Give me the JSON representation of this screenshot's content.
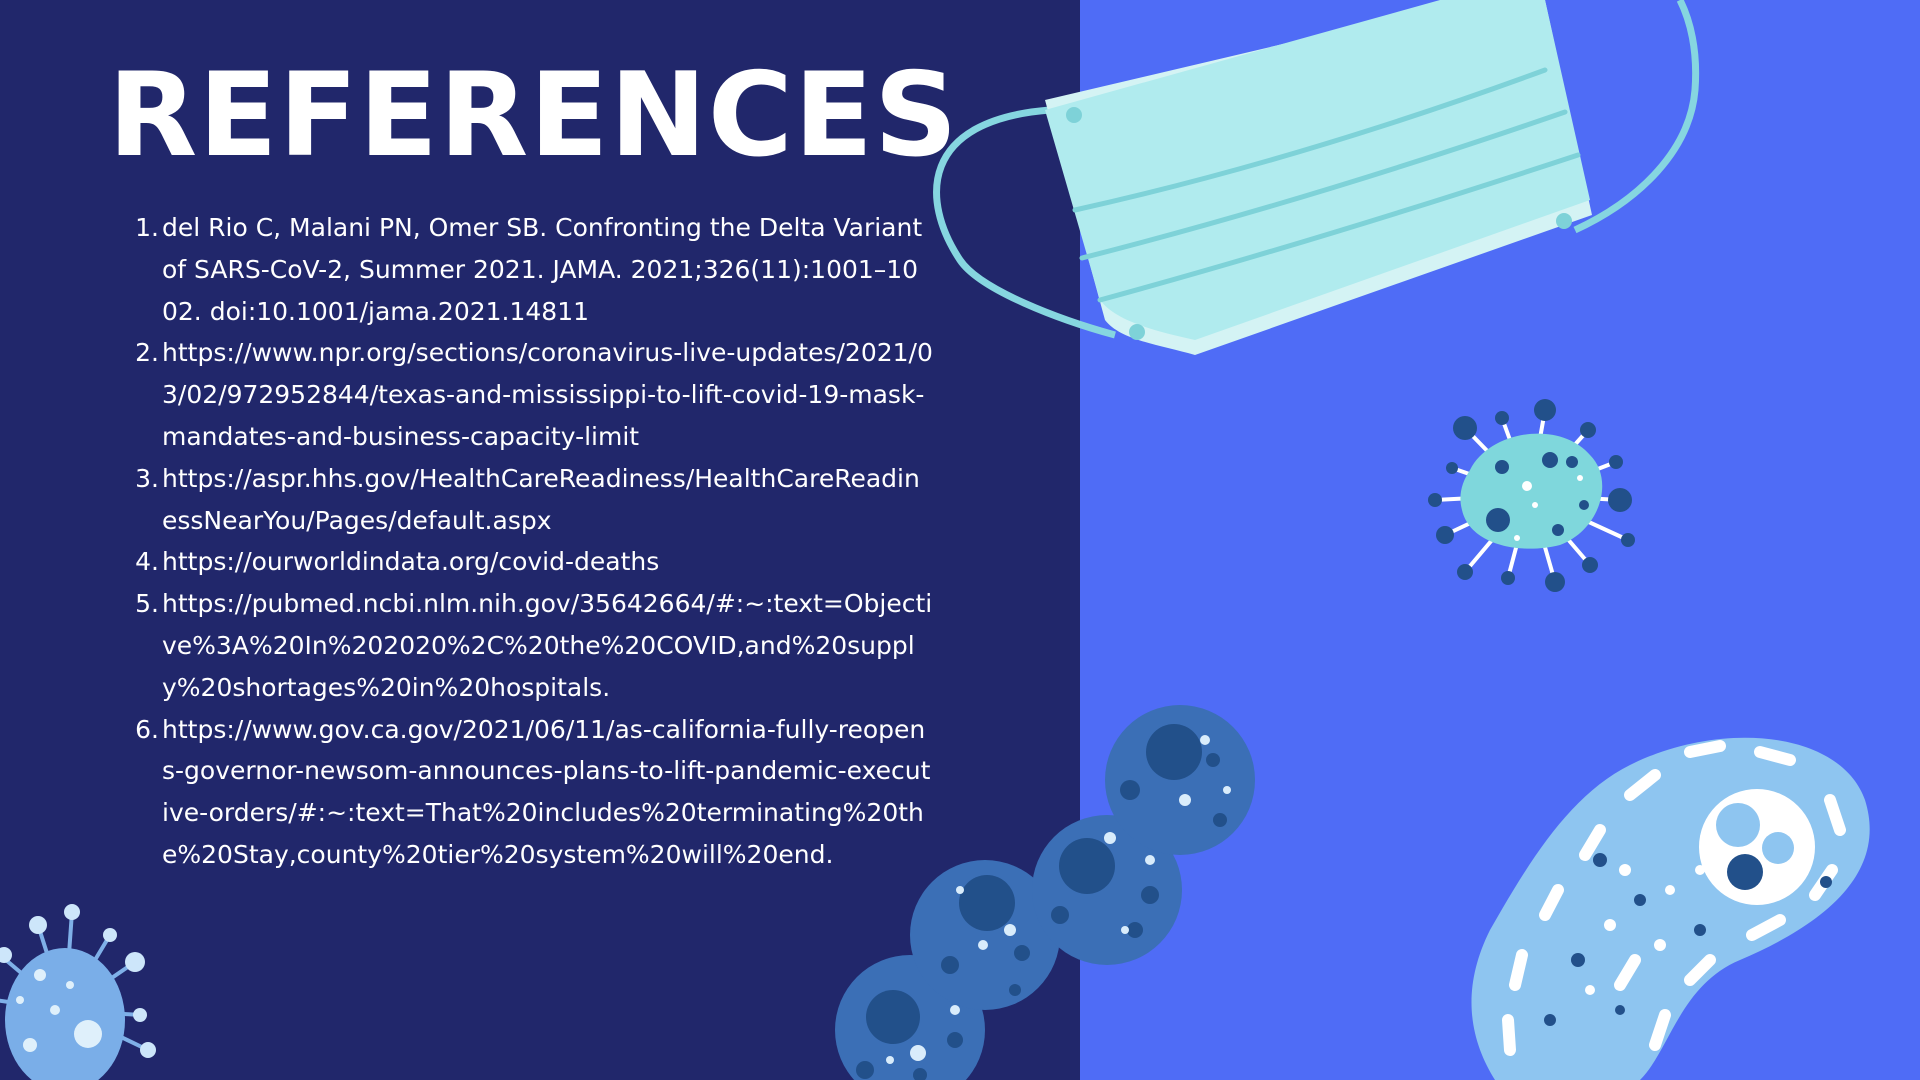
{
  "slide": {
    "title": "REFERENCES",
    "colors": {
      "left_panel": "#21276b",
      "right_panel": "#4f6cf6",
      "text": "#ffffff"
    },
    "references": [
      {
        "num": "1.",
        "text": "del Rio C, Malani PN, Omer SB. Confronting the Delta Variant of SARS-CoV-2, Summer 2021. JAMA. 2021;326(11):1001–1002. doi:10.1001/jama.2021.14811"
      },
      {
        "num": "2.",
        "text": "https://www.npr.org/sections/coronavirus-live-updates/2021/03/02/972952844/texas-and-mississippi-to-lift-covid-19-mask-mandates-and-business-capacity-limit"
      },
      {
        "num": "3.",
        "text": "https://aspr.hhs.gov/HealthCareReadiness/HealthCareReadinessNearYou/Pages/default.aspx"
      },
      {
        "num": "4.",
        "text": "https://ourworldindata.org/covid-deaths"
      },
      {
        "num": "5.",
        "text": "https://pubmed.ncbi.nlm.nih.gov/35642664/#:~:text=Objective%3A%20In%202020%2C%20the%20COVID,and%20supply%20shortages%20in%20hospitals."
      },
      {
        "num": "6.",
        "text": "https://www.gov.ca.gov/2021/06/11/as-california-fully-reopens-governor-newsom-announces-plans-to-lift-pandemic-executive-orders/#:~:text=That%20includes%20terminating%20the%20Stay,county%20tier%20system%20will%20end."
      }
    ],
    "decorations": [
      "face-mask-illustration",
      "virus-small-icon",
      "virus-large-icon",
      "cell-chain-illustration",
      "bacterium-illustration"
    ]
  }
}
